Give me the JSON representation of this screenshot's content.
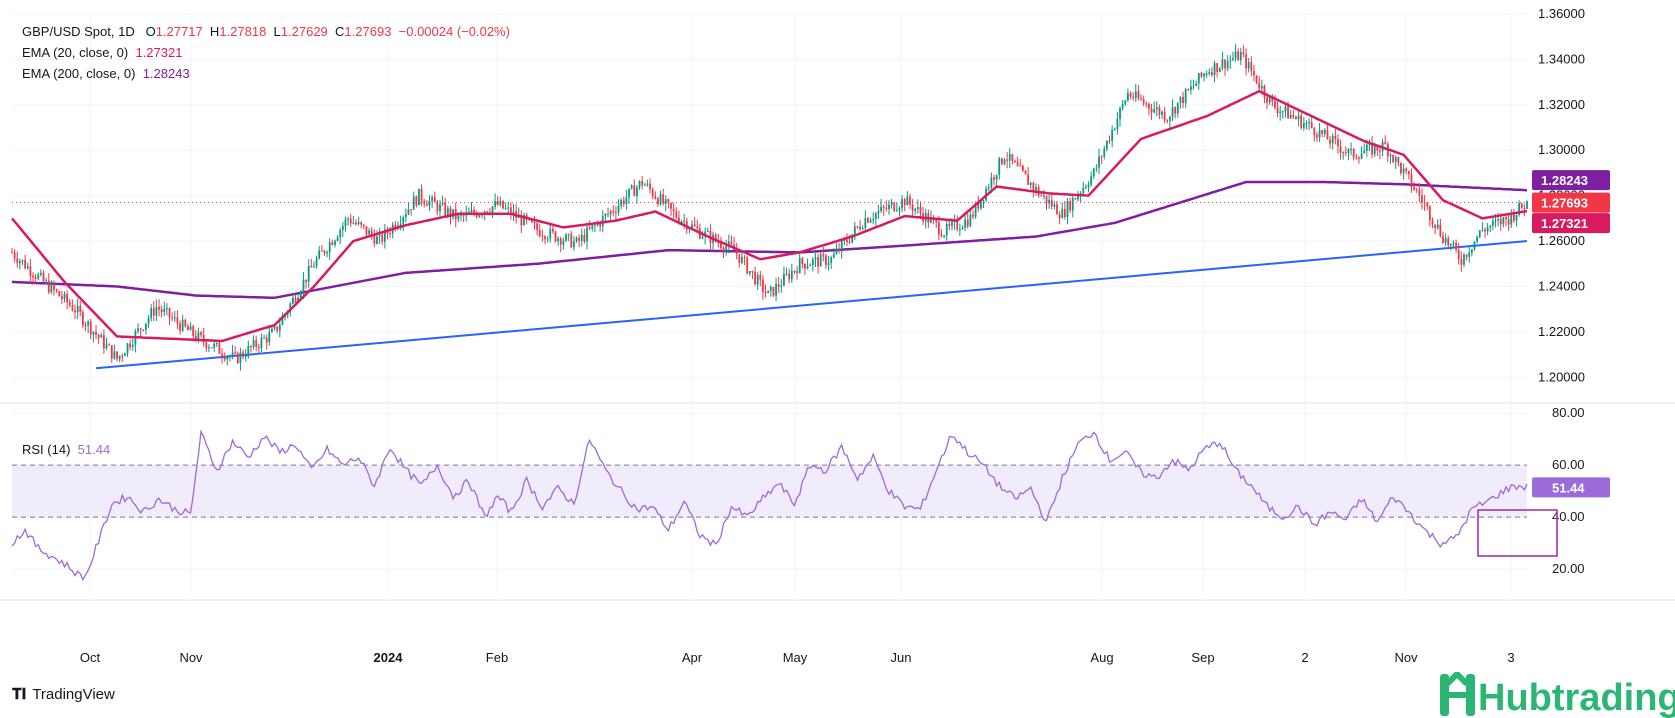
{
  "legend": {
    "symbol": "GBP/USD Spot, 1D",
    "o_label": "O",
    "o_value": "1.27717",
    "h_label": "H",
    "h_value": "1.27818",
    "l_label": "L",
    "l_value": "1.27629",
    "c_label": "C",
    "c_value": "1.27693",
    "change": "−0.00024 (−0.02%)",
    "ema20_label": "EMA (20, close, 0)",
    "ema20_value": "1.27321",
    "ema200_label": "EMA (200, close, 0)",
    "ema200_value": "1.28243",
    "rsi_label": "RSI (14)",
    "rsi_value": "51.44"
  },
  "branding": {
    "tradingview": "TradingView",
    "hubtrading": "Hubtrading"
  },
  "colors": {
    "up": "#089981",
    "down": "#f23645",
    "ema20": "#d81b60",
    "ema200": "#7e1fa2",
    "trendline": "#2962ff",
    "rsi": "#9c6ad9",
    "rsi_band": "#f0ecfb",
    "grid": "#f0f3fa",
    "axis_text": "#131722",
    "hub_green": "#2bb673"
  },
  "chart_data": [
    {
      "type": "candlestick",
      "title": "GBP/USD Spot, 1D",
      "y_ticks": [
        "1.20000",
        "1.22000",
        "1.24000",
        "1.26000",
        "1.28000",
        "1.30000",
        "1.32000",
        "1.34000",
        "1.36000"
      ],
      "ylim": [
        1.19,
        1.36
      ],
      "x_tick_labels": [
        "Oct",
        "Nov",
        "2024",
        "Feb",
        "Apr",
        "May",
        "Jun",
        "Aug",
        "Sep",
        "2",
        "Nov",
        "3"
      ],
      "last_price": 1.27693,
      "price_badges": [
        {
          "label": "1.28243",
          "value": 1.28243,
          "color": "#7e1fa2"
        },
        {
          "label": "1.27693",
          "value": 1.27693,
          "color": "#f23645"
        },
        {
          "label": "1.27321",
          "value": 1.27321,
          "color": "#d81b60"
        }
      ],
      "price_path": [
        [
          0,
          1.255
        ],
        [
          12,
          1.242
        ],
        [
          24,
          1.23
        ],
        [
          40,
          1.208
        ],
        [
          55,
          1.231
        ],
        [
          70,
          1.218
        ],
        [
          85,
          1.208
        ],
        [
          100,
          1.22
        ],
        [
          115,
          1.25
        ],
        [
          128,
          1.27
        ],
        [
          140,
          1.26
        ],
        [
          155,
          1.28
        ],
        [
          170,
          1.27
        ],
        [
          185,
          1.276
        ],
        [
          200,
          1.265
        ],
        [
          215,
          1.259
        ],
        [
          230,
          1.275
        ],
        [
          240,
          1.286
        ],
        [
          252,
          1.272
        ],
        [
          262,
          1.264
        ],
        [
          275,
          1.256
        ],
        [
          288,
          1.236
        ],
        [
          300,
          1.25
        ],
        [
          312,
          1.252
        ],
        [
          325,
          1.27
        ],
        [
          340,
          1.278
        ],
        [
          355,
          1.264
        ],
        [
          365,
          1.27
        ],
        [
          378,
          1.298
        ],
        [
          392,
          1.28
        ],
        [
          400,
          1.272
        ],
        [
          412,
          1.29
        ],
        [
          425,
          1.325
        ],
        [
          440,
          1.315
        ],
        [
          455,
          1.335
        ],
        [
          468,
          1.342
        ],
        [
          480,
          1.32
        ],
        [
          495,
          1.31
        ],
        [
          510,
          1.298
        ],
        [
          523,
          1.302
        ],
        [
          536,
          1.28
        ],
        [
          545,
          1.262
        ],
        [
          552,
          1.252
        ],
        [
          560,
          1.265
        ],
        [
          570,
          1.27
        ],
        [
          577,
          1.2769
        ]
      ],
      "ema20_path": [
        [
          0,
          1.27
        ],
        [
          20,
          1.242
        ],
        [
          40,
          1.218
        ],
        [
          60,
          1.217
        ],
        [
          80,
          1.216
        ],
        [
          100,
          1.223
        ],
        [
          115,
          1.24
        ],
        [
          130,
          1.26
        ],
        [
          150,
          1.267
        ],
        [
          170,
          1.272
        ],
        [
          190,
          1.272
        ],
        [
          210,
          1.266
        ],
        [
          230,
          1.269
        ],
        [
          245,
          1.273
        ],
        [
          265,
          1.262
        ],
        [
          285,
          1.252
        ],
        [
          300,
          1.255
        ],
        [
          320,
          1.262
        ],
        [
          340,
          1.271
        ],
        [
          360,
          1.269
        ],
        [
          375,
          1.284
        ],
        [
          395,
          1.281
        ],
        [
          410,
          1.28
        ],
        [
          430,
          1.305
        ],
        [
          455,
          1.315
        ],
        [
          475,
          1.326
        ],
        [
          495,
          1.315
        ],
        [
          515,
          1.304
        ],
        [
          530,
          1.298
        ],
        [
          545,
          1.278
        ],
        [
          560,
          1.27
        ],
        [
          577,
          1.2732
        ]
      ],
      "ema200_path": [
        [
          0,
          1.242
        ],
        [
          40,
          1.24
        ],
        [
          70,
          1.236
        ],
        [
          100,
          1.235
        ],
        [
          150,
          1.246
        ],
        [
          200,
          1.25
        ],
        [
          250,
          1.256
        ],
        [
          300,
          1.255
        ],
        [
          340,
          1.258
        ],
        [
          390,
          1.262
        ],
        [
          420,
          1.268
        ],
        [
          470,
          1.286
        ],
        [
          500,
          1.286
        ],
        [
          530,
          1.285
        ],
        [
          577,
          1.2824
        ]
      ],
      "trendline": [
        [
          32,
          1.204
        ],
        [
          577,
          1.26
        ]
      ]
    },
    {
      "type": "line",
      "title": "RSI (14)",
      "y_ticks": [
        "20.00",
        "40.00",
        "60.00",
        "80.00"
      ],
      "ylim": [
        10,
        82
      ],
      "band": [
        40,
        60
      ],
      "last_value": 51.44,
      "badge": {
        "label": "51.44",
        "value": 51.44,
        "color": "#9c6ad9"
      },
      "rsi_path": [
        [
          0,
          30
        ],
        [
          5,
          35
        ],
        [
          10,
          28
        ],
        [
          15,
          25
        ],
        [
          20,
          22
        ],
        [
          25,
          18
        ],
        [
          28,
          17
        ],
        [
          32,
          28
        ],
        [
          38,
          45
        ],
        [
          44,
          48
        ],
        [
          50,
          42
        ],
        [
          56,
          47
        ],
        [
          62,
          43
        ],
        [
          68,
          41
        ],
        [
          72,
          72
        ],
        [
          78,
          58
        ],
        [
          84,
          69
        ],
        [
          90,
          63
        ],
        [
          96,
          71
        ],
        [
          102,
          65
        ],
        [
          108,
          68
        ],
        [
          114,
          58
        ],
        [
          120,
          66
        ],
        [
          126,
          60
        ],
        [
          132,
          63
        ],
        [
          138,
          52
        ],
        [
          144,
          67
        ],
        [
          150,
          58
        ],
        [
          156,
          52
        ],
        [
          162,
          60
        ],
        [
          168,
          48
        ],
        [
          174,
          54
        ],
        [
          180,
          40
        ],
        [
          185,
          48
        ],
        [
          190,
          42
        ],
        [
          196,
          54
        ],
        [
          202,
          44
        ],
        [
          208,
          51
        ],
        [
          214,
          45
        ],
        [
          220,
          70
        ],
        [
          226,
          58
        ],
        [
          232,
          50
        ],
        [
          238,
          43
        ],
        [
          244,
          44
        ],
        [
          250,
          35
        ],
        [
          256,
          46
        ],
        [
          262,
          33
        ],
        [
          268,
          29
        ],
        [
          274,
          44
        ],
        [
          280,
          40
        ],
        [
          286,
          47
        ],
        [
          292,
          53
        ],
        [
          298,
          45
        ],
        [
          304,
          60
        ],
        [
          310,
          58
        ],
        [
          316,
          67
        ],
        [
          322,
          55
        ],
        [
          328,
          63
        ],
        [
          334,
          50
        ],
        [
          340,
          44
        ],
        [
          346,
          43
        ],
        [
          352,
          58
        ],
        [
          358,
          72
        ],
        [
          364,
          65
        ],
        [
          370,
          60
        ],
        [
          376,
          52
        ],
        [
          382,
          47
        ],
        [
          388,
          51
        ],
        [
          394,
          38
        ],
        [
          400,
          55
        ],
        [
          406,
          68
        ],
        [
          412,
          73
        ],
        [
          418,
          62
        ],
        [
          424,
          65
        ],
        [
          430,
          57
        ],
        [
          436,
          55
        ],
        [
          442,
          62
        ],
        [
          448,
          58
        ],
        [
          454,
          66
        ],
        [
          460,
          69
        ],
        [
          466,
          58
        ],
        [
          472,
          52
        ],
        [
          478,
          44
        ],
        [
          484,
          40
        ],
        [
          490,
          44
        ],
        [
          496,
          37
        ],
        [
          502,
          42
        ],
        [
          508,
          39
        ],
        [
          514,
          47
        ],
        [
          520,
          38
        ],
        [
          526,
          48
        ],
        [
          532,
          42
        ],
        [
          538,
          35
        ],
        [
          544,
          30
        ],
        [
          550,
          32
        ],
        [
          556,
          43
        ],
        [
          562,
          46
        ],
        [
          568,
          50
        ],
        [
          572,
          52
        ],
        [
          577,
          51.44
        ]
      ]
    }
  ]
}
